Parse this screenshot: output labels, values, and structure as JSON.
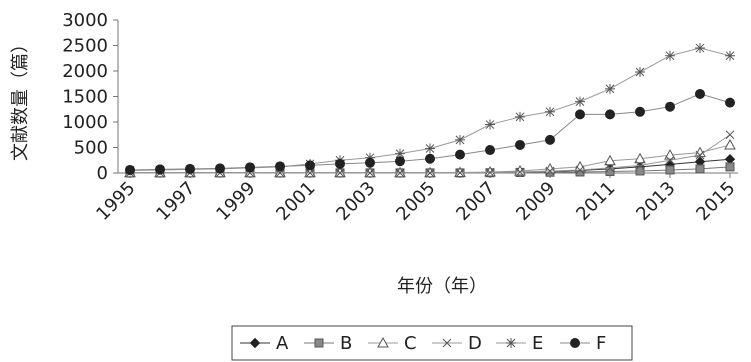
{
  "chart_data": {
    "type": "line",
    "xlabel": "年份（年）",
    "ylabel": "文献数量（篇）",
    "ylim": [
      0,
      3000
    ],
    "yticks": [
      0,
      500,
      1000,
      1500,
      2000,
      2500,
      3000
    ],
    "x": [
      1995,
      1996,
      1997,
      1998,
      1999,
      2000,
      2001,
      2002,
      2003,
      2004,
      2005,
      2006,
      2007,
      2008,
      2009,
      2010,
      2011,
      2012,
      2013,
      2014,
      2015
    ],
    "xticks": [
      1995,
      1997,
      1999,
      2001,
      2003,
      2005,
      2007,
      2009,
      2011,
      2013,
      2015
    ],
    "grid": false,
    "legend_position": "bottom",
    "series": [
      {
        "name": "A",
        "marker": "diamond-filled",
        "values": [
          5,
          5,
          5,
          5,
          5,
          5,
          5,
          5,
          5,
          5,
          5,
          5,
          10,
          20,
          30,
          50,
          80,
          120,
          170,
          220,
          270
        ]
      },
      {
        "name": "B",
        "marker": "square-filled",
        "values": [
          2,
          2,
          2,
          2,
          2,
          2,
          2,
          2,
          2,
          2,
          2,
          2,
          5,
          10,
          15,
          20,
          30,
          40,
          60,
          80,
          120
        ]
      },
      {
        "name": "C",
        "marker": "triangle-open",
        "values": [
          5,
          5,
          5,
          5,
          5,
          5,
          5,
          5,
          5,
          5,
          5,
          10,
          20,
          40,
          80,
          120,
          240,
          280,
          350,
          400,
          550
        ]
      },
      {
        "name": "D",
        "marker": "x",
        "values": [
          2,
          2,
          2,
          2,
          2,
          2,
          2,
          2,
          2,
          2,
          2,
          5,
          10,
          20,
          40,
          60,
          100,
          150,
          250,
          350,
          750
        ]
      },
      {
        "name": "E",
        "marker": "star",
        "values": [
          50,
          60,
          70,
          80,
          100,
          120,
          180,
          250,
          300,
          380,
          480,
          650,
          950,
          1100,
          1200,
          1400,
          1650,
          1980,
          2300,
          2450,
          2300
        ]
      },
      {
        "name": "F",
        "marker": "circle-filled",
        "values": [
          60,
          70,
          80,
          90,
          110,
          130,
          150,
          180,
          200,
          230,
          280,
          360,
          450,
          550,
          650,
          1150,
          1150,
          1200,
          1300,
          1550,
          1380
        ]
      }
    ]
  }
}
